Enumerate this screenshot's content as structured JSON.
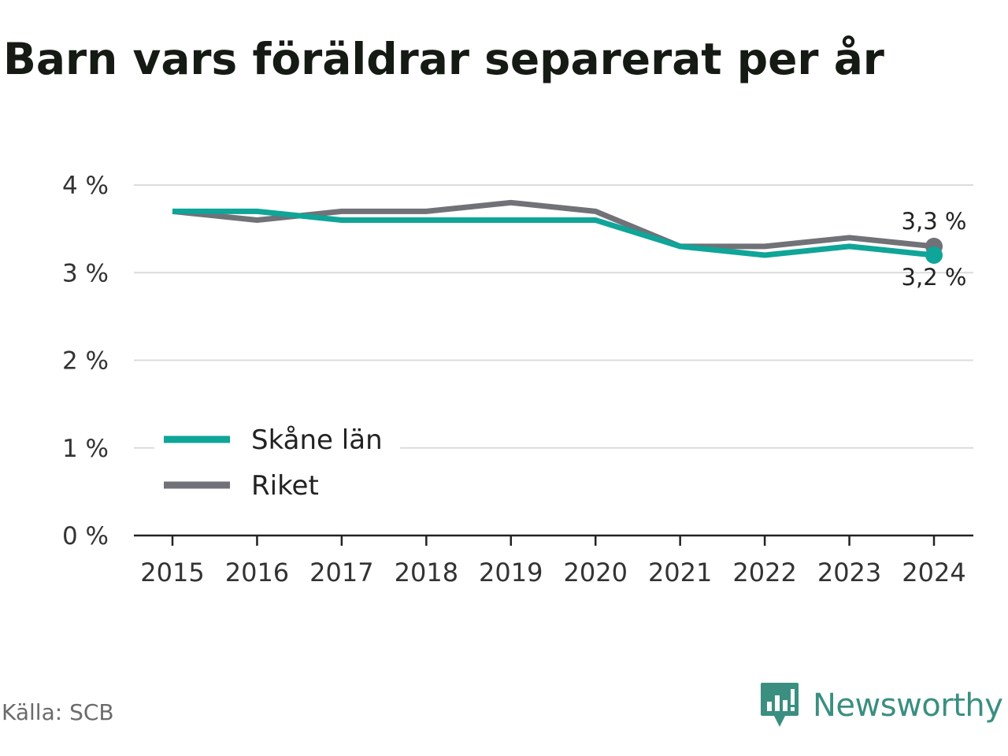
{
  "title": "Barn vars föräldrar separerat per år",
  "source": "Källa: SCB",
  "brand": {
    "name": "Newsworthy",
    "icon": "newsworthy-logo-icon",
    "color": "#3a8f80"
  },
  "chart_data": {
    "type": "line",
    "title": "Barn vars föräldrar separerat per år",
    "x": [
      "2015",
      "2016",
      "2017",
      "2018",
      "2019",
      "2020",
      "2021",
      "2022",
      "2023",
      "2024"
    ],
    "ylim": [
      0,
      4
    ],
    "y_ticks": [
      {
        "value": 0,
        "label": "0 %"
      },
      {
        "value": 1,
        "label": "1 %"
      },
      {
        "value": 2,
        "label": "2 %"
      },
      {
        "value": 3,
        "label": "3 %"
      },
      {
        "value": 4,
        "label": "4 %"
      }
    ],
    "grid": true,
    "legend_position": "bottom-left",
    "series": [
      {
        "name": "Skåne län",
        "color": "#0fa598",
        "values": [
          3.7,
          3.7,
          3.6,
          3.6,
          3.6,
          3.6,
          3.3,
          3.2,
          3.3,
          3.2
        ],
        "end_label": "3,2 %"
      },
      {
        "name": "Riket",
        "color": "#717178",
        "values": [
          3.7,
          3.6,
          3.7,
          3.7,
          3.8,
          3.7,
          3.3,
          3.3,
          3.4,
          3.3
        ],
        "end_label": "3,3 %"
      }
    ]
  }
}
